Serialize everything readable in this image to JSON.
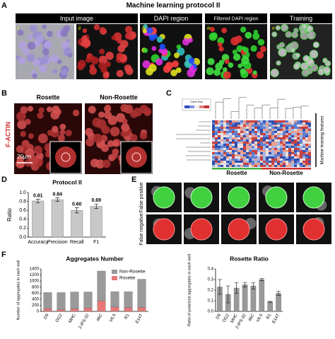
{
  "figure": {
    "title": "Machine learning protocol II"
  },
  "panel_a": {
    "label": "A",
    "headers": [
      "Input image",
      "DAPI region",
      "Filtered DAPI region",
      "Training"
    ],
    "numerals": [
      "i",
      "ii",
      "iii",
      "iv",
      "v"
    ]
  },
  "panel_b": {
    "label": "B",
    "columns": [
      "Rosette",
      "Non-Rosette"
    ],
    "stain": "F-ACTIN",
    "scale_bar": "20μm"
  },
  "panel_c": {
    "label": "C",
    "color_key": "Color Key",
    "groups": [
      "Rosette",
      "Non-Rosette"
    ],
    "features_label": "Machine learning features"
  },
  "panel_d": {
    "label": "D"
  },
  "panel_e": {
    "label": "E",
    "rows": [
      "False positive",
      "False negative"
    ]
  },
  "panel_f": {
    "label": "F"
  },
  "chart_data": [
    {
      "type": "bar",
      "title": "Protocol II",
      "y_label": "Ratio",
      "categories": [
        "Accuracy",
        "Precision",
        "Recall",
        "F1"
      ],
      "values": [
        0.81,
        0.84,
        0.6,
        0.69
      ],
      "value_labels": [
        "0.81",
        "0.84",
        "0.60",
        "0.69"
      ],
      "errors": [
        0.04,
        0.04,
        0.06,
        0.05
      ],
      "color": "#c8c8c8",
      "ylim": [
        0,
        1.0
      ],
      "yticks": [
        {
          "value": 0,
          "label": "0.0"
        },
        0.2,
        0.4,
        0.6,
        0.8,
        {
          "value": 1.0,
          "label": "1.0"
        }
      ]
    },
    {
      "type": "bar",
      "stacked": true,
      "title": "Aggregates Number",
      "y_label": "Number of aggregates in each well",
      "categories": [
        "D9",
        "OG2",
        "MHC",
        "2-iPS-32",
        "46C",
        "V6.5",
        "R1",
        "E14T"
      ],
      "series": [
        {
          "name": "Non-Rosette",
          "color": "#9a9a9a",
          "values": [
            530,
            560,
            550,
            530,
            980,
            500,
            530,
            930
          ]
        },
        {
          "name": "Rosette",
          "color": "#e87878",
          "values": [
            90,
            60,
            90,
            110,
            350,
            150,
            120,
            130
          ]
        }
      ],
      "legend": "upper-right",
      "ylim": [
        0,
        1400
      ],
      "yticks": [
        0,
        200,
        400,
        600,
        800,
        1000,
        1200,
        1400
      ]
    },
    {
      "type": "bar",
      "title": "Rosette Ratio",
      "y_label": "Ratio of polarized aggregates in each well",
      "categories": [
        "D9",
        "OG2",
        "MHC",
        "2-iPS-32",
        "46C",
        "V6.5",
        "R1",
        "E14T"
      ],
      "values": [
        0.23,
        0.16,
        0.22,
        0.25,
        0.24,
        0.3,
        0.09,
        0.17
      ],
      "errors": [
        0.07,
        0.08,
        0.05,
        0.02,
        0.03,
        0.01,
        0.005,
        0.02
      ],
      "color": "#9a9a9a",
      "ylim": [
        0,
        0.4
      ],
      "yticks": [
        {
          "value": 0,
          "label": "0.0"
        },
        0.1,
        0.2,
        0.3,
        0.4
      ]
    }
  ]
}
